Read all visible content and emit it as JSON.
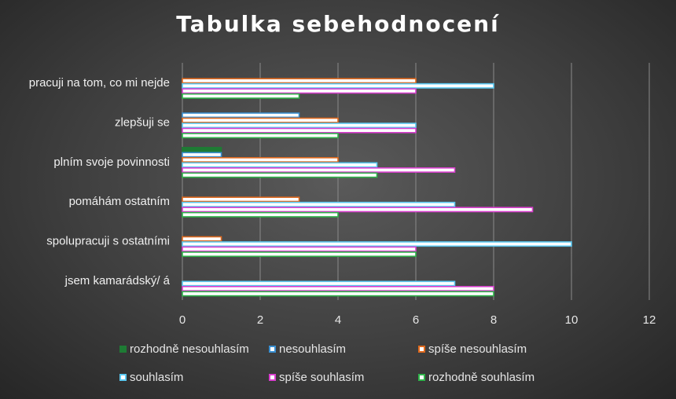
{
  "chart_data": {
    "type": "bar",
    "orientation": "horizontal",
    "title": "Tabulka sebehodnocení",
    "categories": [
      "pracuji na tom, co mi nejde",
      "zlepšuji se",
      "plním svoje povinnosti",
      "pomáhám ostatním",
      "spolupracuji s ostatními",
      "jsem kamarádský/ á"
    ],
    "series": [
      {
        "name": "rozhodně nesouhlasím",
        "values": [
          0,
          0,
          1,
          0,
          0,
          0
        ],
        "color": "#1e7b34",
        "style": "filled"
      },
      {
        "name": "nesouhlasím",
        "values": [
          0,
          3,
          1,
          0,
          0,
          0
        ],
        "color": "#3a8fd1",
        "style": "outline"
      },
      {
        "name": "spíše nesouhlasím",
        "values": [
          6,
          4,
          4,
          3,
          1,
          0
        ],
        "color": "#e06a1e",
        "style": "outline"
      },
      {
        "name": "souhlasím",
        "values": [
          8,
          6,
          5,
          7,
          10,
          7
        ],
        "color": "#5bc8f0",
        "style": "outline"
      },
      {
        "name": "spíše souhlasím",
        "values": [
          6,
          6,
          7,
          9,
          6,
          8
        ],
        "color": "#d93fcf",
        "style": "outline"
      },
      {
        "name": "rozhodně souhlasím",
        "values": [
          3,
          4,
          5,
          4,
          6,
          8
        ],
        "color": "#2fb34a",
        "style": "outline"
      }
    ],
    "xlim": [
      0,
      12
    ],
    "xticks": [
      0,
      2,
      4,
      6,
      8,
      10,
      12
    ],
    "grid": "vertical",
    "legend_position": "bottom"
  }
}
